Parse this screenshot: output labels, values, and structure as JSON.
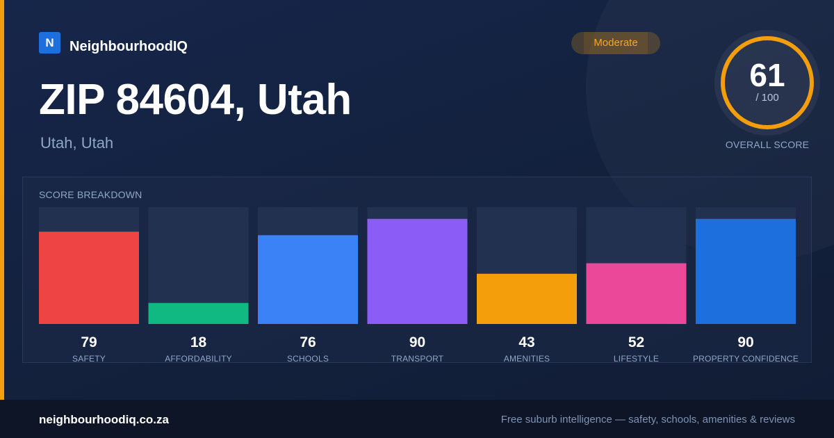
{
  "colors": {
    "accent": "#f59e0b",
    "brand_blue": "#1d6fde"
  },
  "brand": {
    "logo_letter": "N",
    "name": "NeighbourhoodIQ"
  },
  "header": {
    "title": "ZIP 84604, Utah",
    "subtitle": "Utah, Utah",
    "rating_badge": "Moderate"
  },
  "overall": {
    "score": 61,
    "score_text": "61",
    "max_text": "/ 100",
    "label": "OVERALL SCORE"
  },
  "breakdown": {
    "title": "SCORE BREAKDOWN"
  },
  "chart_data": {
    "type": "bar",
    "title": "SCORE BREAKDOWN",
    "categories": [
      "SAFETY",
      "AFFORDABILITY",
      "SCHOOLS",
      "TRANSPORT",
      "AMENITIES",
      "LIFESTYLE",
      "PROPERTY CONFIDENCE"
    ],
    "values": [
      79,
      18,
      76,
      90,
      43,
      52,
      90
    ],
    "colors": [
      "#ef4444",
      "#10b981",
      "#3b82f6",
      "#8b5cf6",
      "#f59e0b",
      "#ec4899",
      "#1d6fde"
    ],
    "ylim": [
      0,
      100
    ],
    "grid": false,
    "legend": "none"
  },
  "footer": {
    "domain": "neighbourhoodiq.co.za",
    "tagline": "Free suburb intelligence — safety, schools, amenities & reviews"
  }
}
